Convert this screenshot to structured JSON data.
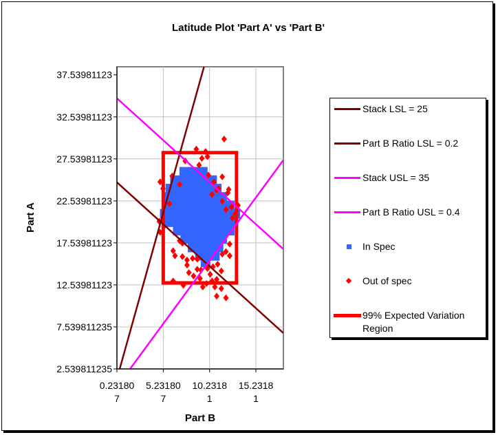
{
  "chart_data": {
    "type": "scatter",
    "title": "Latitude Plot 'Part A' vs 'Part B'",
    "xlabel": "Part B",
    "ylabel": "Part A",
    "xlim": [
      0.231807,
      18.2
    ],
    "ylim": [
      2.539811235,
      38.5
    ],
    "grid": true,
    "legend_position": "right",
    "x_ticks": [
      0.231807,
      5.231807,
      10.231807,
      15.231807
    ],
    "x_tick_labels": [
      "0.231807",
      "5.231807",
      "10.23181",
      "15.23181"
    ],
    "y_ticks": [
      37.53981123,
      32.53981123,
      27.53981123,
      22.53981123,
      17.53981123,
      12.53981123,
      7.539811235,
      2.539811235
    ],
    "y_tick_labels": [
      "37.53981123",
      "32.53981123",
      "27.53981123",
      "22.53981123",
      "17.53981123",
      "12.53981123",
      "7.539811235",
      "2.539811235"
    ],
    "lines": [
      {
        "name": "Stack LSL = 25",
        "color": "#800000",
        "points": [
          [
            0.53,
            2.54
          ],
          [
            9.63,
            38.5
          ]
        ]
      },
      {
        "name": "Part B Ratio LSL = 0.2",
        "color": "#800000",
        "points": [
          [
            0.23,
            24.75
          ],
          [
            18.2,
            6.8
          ]
        ]
      },
      {
        "name": "Stack USL = 35",
        "color": "#ff00ff",
        "points": [
          [
            0.23,
            34.75
          ],
          [
            18.2,
            16.8
          ]
        ]
      },
      {
        "name": "Part B Ratio USL = 0.4",
        "color": "#ff00ff",
        "points": [
          [
            1.65,
            2.54
          ],
          [
            18.2,
            27.4
          ]
        ]
      }
    ],
    "region": {
      "name": "99% Expected Variation Region",
      "color": "#ff0000",
      "x": [
        5.23,
        13.14
      ],
      "y": [
        12.78,
        28.28
      ]
    },
    "in_spec": {
      "name": "In Spec",
      "color": "#3366ff",
      "points": [
        [
          7.5,
          26
        ],
        [
          8.5,
          26
        ],
        [
          9.5,
          26
        ],
        [
          6.5,
          25
        ],
        [
          7.5,
          25
        ],
        [
          8.5,
          25
        ],
        [
          9.5,
          25
        ],
        [
          10.5,
          25
        ],
        [
          6,
          24
        ],
        [
          7,
          24
        ],
        [
          8,
          24
        ],
        [
          9,
          24
        ],
        [
          10,
          24
        ],
        [
          11,
          24
        ],
        [
          5.8,
          23
        ],
        [
          6.8,
          23
        ],
        [
          7.8,
          23
        ],
        [
          8.8,
          23
        ],
        [
          9.8,
          23
        ],
        [
          10.8,
          23
        ],
        [
          11.6,
          23
        ],
        [
          5.6,
          22
        ],
        [
          6.6,
          22
        ],
        [
          7.6,
          22
        ],
        [
          8.6,
          22
        ],
        [
          9.6,
          22
        ],
        [
          10.6,
          22
        ],
        [
          11.6,
          22
        ],
        [
          12.4,
          22
        ],
        [
          5.4,
          21
        ],
        [
          6.4,
          21
        ],
        [
          7.4,
          21
        ],
        [
          8.4,
          21
        ],
        [
          9.4,
          21
        ],
        [
          10.4,
          21
        ],
        [
          11.4,
          21
        ],
        [
          12.4,
          21
        ],
        [
          13,
          21
        ],
        [
          5.8,
          20
        ],
        [
          6.8,
          20
        ],
        [
          7.8,
          20
        ],
        [
          8.8,
          20
        ],
        [
          9.8,
          20
        ],
        [
          10.8,
          20
        ],
        [
          11.8,
          20
        ],
        [
          12.8,
          20
        ],
        [
          6.8,
          19
        ],
        [
          7.8,
          19
        ],
        [
          8.8,
          19
        ],
        [
          9.8,
          19
        ],
        [
          10.8,
          19
        ],
        [
          11.8,
          19
        ],
        [
          12.4,
          19
        ],
        [
          7.6,
          18
        ],
        [
          8.6,
          18
        ],
        [
          9.6,
          18
        ],
        [
          10.6,
          18
        ],
        [
          11.6,
          18
        ],
        [
          8.4,
          17
        ],
        [
          9.4,
          17
        ],
        [
          10.4,
          17
        ],
        [
          11.2,
          17
        ],
        [
          9.2,
          16
        ],
        [
          10.2,
          16
        ],
        [
          10.8,
          16
        ],
        [
          9.8,
          15.2
        ]
      ]
    },
    "out_of_spec": {
      "name": "Out of spec",
      "color": "#ff0000",
      "points": [
        [
          11.8,
          29.9
        ],
        [
          8.8,
          28.7
        ],
        [
          9.8,
          28.4
        ],
        [
          7.6,
          27.3
        ],
        [
          9.4,
          27.6
        ],
        [
          10,
          27.8
        ],
        [
          9.1,
          26.8
        ],
        [
          6.2,
          25.5
        ],
        [
          10.1,
          25.6
        ],
        [
          11.6,
          25.4
        ],
        [
          4.9,
          24.8
        ],
        [
          7.0,
          24.5
        ],
        [
          10.7,
          24.8
        ],
        [
          11.2,
          24.0
        ],
        [
          12.2,
          23.5
        ],
        [
          12.3,
          23.9
        ],
        [
          10.5,
          23.3
        ],
        [
          11.0,
          23.8
        ],
        [
          11.6,
          22.5
        ],
        [
          12.0,
          21.5
        ],
        [
          12.6,
          21.8
        ],
        [
          13.3,
          22.0
        ],
        [
          13.0,
          21.0
        ],
        [
          12.7,
          20.5
        ],
        [
          5.2,
          24.0
        ],
        [
          5.9,
          22.2
        ],
        [
          4.8,
          20.1
        ],
        [
          4.9,
          18.8
        ],
        [
          5.3,
          19.5
        ],
        [
          7.0,
          17.8
        ],
        [
          7.3,
          17.5
        ],
        [
          6.3,
          16.6
        ],
        [
          12.4,
          17.4
        ],
        [
          12.0,
          16.5
        ],
        [
          11.6,
          16.2
        ],
        [
          12.4,
          16.0
        ],
        [
          7.3,
          15.9
        ],
        [
          7.8,
          15.5
        ],
        [
          8.4,
          15.7
        ],
        [
          7.8,
          14.9
        ],
        [
          8.9,
          15.6
        ],
        [
          8.0,
          14.0
        ],
        [
          8.9,
          14.4
        ],
        [
          9.3,
          14.3
        ],
        [
          10.0,
          14.5
        ],
        [
          10.6,
          14.7
        ],
        [
          11.1,
          15.0
        ],
        [
          8.5,
          13.6
        ],
        [
          9.2,
          13.3
        ],
        [
          10.3,
          13.8
        ],
        [
          11.0,
          13.2
        ],
        [
          9.9,
          12.7
        ],
        [
          6.3,
          13.0
        ],
        [
          7.4,
          12.5
        ],
        [
          10.8,
          12.3
        ],
        [
          11.5,
          12.1
        ],
        [
          11.0,
          11.2
        ],
        [
          12.0,
          11.0
        ],
        [
          9.5,
          12.3
        ],
        [
          10.5,
          13.0
        ],
        [
          6.5,
          16.0
        ],
        [
          11.5,
          14.2
        ]
      ]
    }
  },
  "legend": {
    "items": [
      {
        "label": "Stack LSL = 25",
        "kind": "line",
        "color": "#800000"
      },
      {
        "label": "Part B Ratio LSL = 0.2",
        "kind": "line",
        "color": "#800000"
      },
      {
        "label": "Stack USL = 35",
        "kind": "line",
        "color": "#ff00ff"
      },
      {
        "label": "Part B Ratio USL = 0.4",
        "kind": "line",
        "color": "#ff00ff"
      },
      {
        "label": "In Spec",
        "kind": "square",
        "color": "#3366ff"
      },
      {
        "label": "Out of spec",
        "kind": "diamond",
        "color": "#ff0000"
      },
      {
        "label": "99% Expected Variation Region",
        "kind": "thick-line",
        "color": "#ff0000"
      }
    ]
  }
}
